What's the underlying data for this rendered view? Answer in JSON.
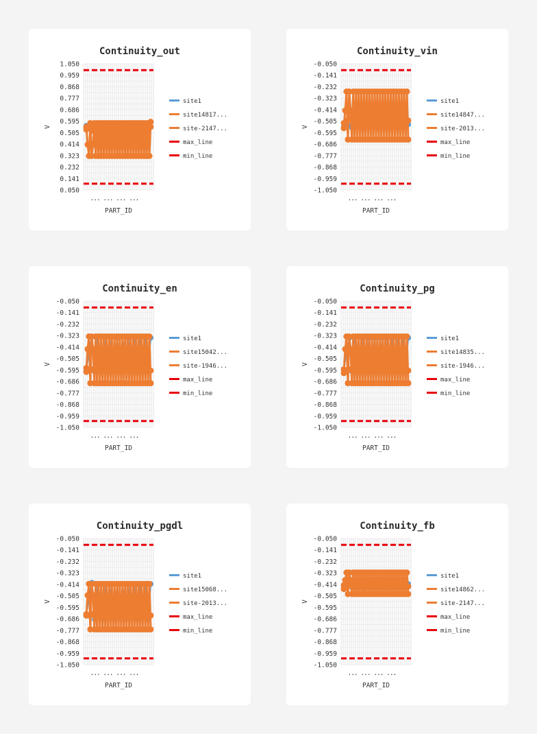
{
  "chart_data": [
    {
      "type": "line",
      "title": "Continuity_out",
      "xlabel": "PART_ID",
      "ylabel": "V",
      "yticks": [
        "1.050",
        "0.959",
        "0.868",
        "0.777",
        "0.686",
        "0.595",
        "0.505",
        "0.414",
        "0.323",
        "0.232",
        "0.141",
        "0.050"
      ],
      "ylim": [
        0.05,
        1.05
      ],
      "xtick_text": "... ... ... ...",
      "legend": [
        "site1",
        "site14817...",
        "site-2147...",
        "max_line",
        "min_line"
      ],
      "colors": {
        "site1": "#5b9bd5",
        "site2": "#ed7d31",
        "site3": "#ed7d31",
        "max_line": "#e8000b",
        "min_line": "#e8000b"
      },
      "series": [
        {
          "name": "site1",
          "values": [
            0.56,
            0.55,
            0.56,
            0.54,
            0.53,
            0.55,
            0.56,
            0.54,
            0.55,
            0.57,
            0.54,
            0.56,
            0.55,
            0.56,
            0.54,
            0.55,
            0.56,
            0.53,
            0.55,
            0.56,
            0.54,
            0.55,
            0.56,
            0.55
          ]
        },
        {
          "name": "site14817...",
          "values": [
            0.55,
            0.41,
            0.32,
            0.58,
            0.32,
            0.41,
            0.58,
            0.32,
            0.58,
            0.32,
            0.58,
            0.32,
            0.58,
            0.32,
            0.58,
            0.32,
            0.58,
            0.32,
            0.58,
            0.32,
            0.58,
            0.32,
            0.58,
            0.32,
            0.58,
            0.32,
            0.58,
            0.32,
            0.58,
            0.32,
            0.58,
            0.32,
            0.58,
            0.32,
            0.58,
            0.32,
            0.58,
            0.32,
            0.58,
            0.32,
            0.58,
            0.32,
            0.58,
            0.32,
            0.58,
            0.32,
            0.58,
            0.32,
            0.59
          ]
        },
        {
          "name": "site-2147...",
          "values": [
            0.53,
            0.55,
            0.52,
            0.55,
            0.53,
            0.55,
            0.52,
            0.55,
            0.53,
            0.55,
            0.52,
            0.55,
            0.53,
            0.55,
            0.52,
            0.55,
            0.53,
            0.55,
            0.52,
            0.55,
            0.53,
            0.55,
            0.52,
            0.55
          ]
        },
        {
          "name": "max_line",
          "constant": 1.0
        },
        {
          "name": "min_line",
          "constant": 0.1
        }
      ]
    },
    {
      "type": "line",
      "title": "Continuity_vin",
      "xlabel": "PART_ID",
      "ylabel": "V",
      "yticks": [
        "-0.050",
        "-0.141",
        "-0.232",
        "-0.323",
        "-0.414",
        "-0.505",
        "-0.595",
        "-0.686",
        "-0.777",
        "-0.868",
        "-0.959",
        "-1.050"
      ],
      "ylim": [
        -1.05,
        -0.05
      ],
      "xtick_text": "... ... ... ...",
      "legend": [
        "site1",
        "site14847...",
        "site-2013...",
        "max_line",
        "min_line"
      ],
      "colors": {
        "site1": "#5b9bd5",
        "site2": "#ed7d31",
        "site3": "#ed7d31",
        "max_line": "#e8000b",
        "min_line": "#e8000b"
      },
      "series": [
        {
          "name": "site1",
          "values": [
            -0.55,
            -0.52,
            -0.54,
            -0.56,
            -0.55,
            -0.53,
            -0.55,
            -0.56,
            -0.54,
            -0.55,
            -0.53,
            -0.55,
            -0.56,
            -0.54,
            -0.55,
            -0.56,
            -0.53,
            -0.55,
            -0.54,
            -0.55,
            -0.56,
            -0.54,
            -0.55,
            -0.53
          ]
        },
        {
          "name": "site14847...",
          "values": [
            -0.56,
            -0.42,
            -0.27,
            -0.65,
            -0.27,
            -0.42,
            -0.65,
            -0.27,
            -0.65,
            -0.27,
            -0.65,
            -0.27,
            -0.65,
            -0.27,
            -0.65,
            -0.27,
            -0.65,
            -0.27,
            -0.65,
            -0.27,
            -0.65,
            -0.27,
            -0.65,
            -0.27,
            -0.65,
            -0.27,
            -0.65,
            -0.27,
            -0.65,
            -0.27,
            -0.65,
            -0.27,
            -0.65,
            -0.27,
            -0.65,
            -0.27,
            -0.65,
            -0.27,
            -0.65,
            -0.27,
            -0.65,
            -0.27,
            -0.65,
            -0.27,
            -0.65,
            -0.27,
            -0.65,
            -0.27,
            -0.65
          ]
        },
        {
          "name": "site-2013...",
          "values": [
            -0.52,
            -0.5,
            -0.49,
            -0.5,
            -0.49,
            -0.5,
            -0.49,
            -0.5,
            -0.49,
            -0.5,
            -0.49,
            -0.5,
            -0.49,
            -0.5,
            -0.49,
            -0.5,
            -0.49,
            -0.5,
            -0.49,
            -0.5,
            -0.49,
            -0.5,
            -0.49,
            -0.5
          ]
        },
        {
          "name": "max_line",
          "constant": -0.1
        },
        {
          "name": "min_line",
          "constant": -1.0
        }
      ]
    },
    {
      "type": "line",
      "title": "Continuity_en",
      "xlabel": "PART_ID",
      "ylabel": "V",
      "yticks": [
        "-0.050",
        "-0.141",
        "-0.232",
        "-0.323",
        "-0.414",
        "-0.505",
        "-0.595",
        "-0.686",
        "-0.777",
        "-0.868",
        "-0.959",
        "-1.050"
      ],
      "ylim": [
        -1.05,
        -0.05
      ],
      "xtick_text": "... ... ... ...",
      "legend": [
        "site1",
        "site15042...",
        "site-1946...",
        "max_line",
        "min_line"
      ],
      "colors": {
        "site1": "#5b9bd5",
        "site2": "#ed7d31",
        "site3": "#ed7d31",
        "max_line": "#e8000b",
        "min_line": "#e8000b"
      },
      "series": [
        {
          "name": "site1",
          "values": [
            -0.6,
            -0.45,
            -0.33,
            -0.61,
            -0.34,
            -0.44,
            -0.6,
            -0.33,
            -0.59,
            -0.33,
            -0.6,
            -0.34,
            -0.6,
            -0.33,
            -0.59,
            -0.34,
            -0.6,
            -0.33,
            -0.6,
            -0.34,
            -0.59,
            -0.33,
            -0.6,
            -0.34
          ]
        },
        {
          "name": "site15042...",
          "values": [
            -0.61,
            -0.43,
            -0.33,
            -0.7,
            -0.33,
            -0.43,
            -0.7,
            -0.33,
            -0.7,
            -0.33,
            -0.7,
            -0.33,
            -0.7,
            -0.33,
            -0.7,
            -0.33,
            -0.7,
            -0.33,
            -0.7,
            -0.33,
            -0.7,
            -0.33,
            -0.7,
            -0.33,
            -0.7,
            -0.33,
            -0.7,
            -0.33,
            -0.7,
            -0.33,
            -0.7,
            -0.33,
            -0.7,
            -0.33,
            -0.7,
            -0.33,
            -0.7,
            -0.33,
            -0.7,
            -0.33,
            -0.7,
            -0.33,
            -0.7,
            -0.33,
            -0.7,
            -0.33,
            -0.7,
            -0.33,
            -0.7
          ]
        },
        {
          "name": "site-1946...",
          "values": [
            -0.58,
            -0.6,
            -0.59,
            -0.6,
            -0.59,
            -0.6,
            -0.59,
            -0.6,
            -0.59,
            -0.6,
            -0.59,
            -0.6,
            -0.59,
            -0.6,
            -0.59,
            -0.6,
            -0.59,
            -0.6,
            -0.59,
            -0.6,
            -0.59,
            -0.6,
            -0.59,
            -0.6
          ]
        },
        {
          "name": "max_line",
          "constant": -0.1
        },
        {
          "name": "min_line",
          "constant": -1.0
        }
      ]
    },
    {
      "type": "line",
      "title": "Continuity_pg",
      "xlabel": "PART_ID",
      "ylabel": "V",
      "yticks": [
        "-0.050",
        "-0.141",
        "-0.232",
        "-0.323",
        "-0.414",
        "-0.505",
        "-0.595",
        "-0.686",
        "-0.777",
        "-0.868",
        "-0.959",
        "-1.050"
      ],
      "ylim": [
        -1.05,
        -0.05
      ],
      "xtick_text": "... ... ... ...",
      "legend": [
        "site1",
        "site14835...",
        "site-1946...",
        "max_line",
        "min_line"
      ],
      "colors": {
        "site1": "#5b9bd5",
        "site2": "#ed7d31",
        "site3": "#ed7d31",
        "max_line": "#e8000b",
        "min_line": "#e8000b"
      },
      "series": [
        {
          "name": "site1",
          "values": [
            -0.6,
            -0.45,
            -0.34,
            -0.61,
            -0.34,
            -0.44,
            -0.61,
            -0.34,
            -0.6,
            -0.34,
            -0.61,
            -0.34,
            -0.6,
            -0.34,
            -0.61,
            -0.34,
            -0.6,
            -0.34,
            -0.61,
            -0.34,
            -0.6,
            -0.34,
            -0.61,
            -0.34
          ]
        },
        {
          "name": "site14835...",
          "values": [
            -0.62,
            -0.43,
            -0.33,
            -0.7,
            -0.33,
            -0.43,
            -0.7,
            -0.33,
            -0.7,
            -0.33,
            -0.7,
            -0.33,
            -0.7,
            -0.33,
            -0.7,
            -0.33,
            -0.7,
            -0.33,
            -0.7,
            -0.33,
            -0.7,
            -0.33,
            -0.7,
            -0.33,
            -0.7,
            -0.33,
            -0.7,
            -0.33,
            -0.7,
            -0.33,
            -0.7,
            -0.33,
            -0.7,
            -0.33,
            -0.7,
            -0.33,
            -0.7,
            -0.33,
            -0.7,
            -0.33,
            -0.7,
            -0.33,
            -0.7,
            -0.33,
            -0.7,
            -0.33,
            -0.7,
            -0.33,
            -0.7
          ]
        },
        {
          "name": "site-1946...",
          "values": [
            -0.59,
            -0.6,
            -0.59,
            -0.6,
            -0.59,
            -0.6,
            -0.59,
            -0.6,
            -0.59,
            -0.6,
            -0.59,
            -0.6,
            -0.59,
            -0.6,
            -0.59,
            -0.6,
            -0.59,
            -0.6,
            -0.59,
            -0.6,
            -0.59,
            -0.6,
            -0.59,
            -0.6
          ]
        },
        {
          "name": "max_line",
          "constant": -0.1
        },
        {
          "name": "min_line",
          "constant": -1.0
        }
      ]
    },
    {
      "type": "line",
      "title": "Continuity_pgdl",
      "xlabel": "PART_ID",
      "ylabel": "V",
      "yticks": [
        "-0.050",
        "-0.141",
        "-0.232",
        "-0.323",
        "-0.414",
        "-0.505",
        "-0.595",
        "-0.686",
        "-0.777",
        "-0.868",
        "-0.959",
        "-1.050"
      ],
      "ylim": [
        -1.05,
        -0.05
      ],
      "xtick_text": "... ... ... ...",
      "legend": [
        "site1",
        "site15068...",
        "site-2013...",
        "max_line",
        "min_line"
      ],
      "colors": {
        "site1": "#5b9bd5",
        "site2": "#ed7d31",
        "site3": "#ed7d31",
        "max_line": "#e8000b",
        "min_line": "#e8000b"
      },
      "series": [
        {
          "name": "site1",
          "values": [
            -0.65,
            -0.52,
            -0.4,
            -0.69,
            -0.41,
            -0.52,
            -0.69,
            -0.41,
            -0.68,
            -0.41,
            -0.69,
            -0.41,
            -0.68,
            -0.41,
            -0.69,
            -0.41,
            -0.68,
            -0.41,
            -0.69,
            -0.41,
            -0.68,
            -0.41,
            -0.69,
            -0.41
          ]
        },
        {
          "name": "site15068...",
          "values": [
            -0.66,
            -0.5,
            -0.41,
            -0.77,
            -0.41,
            -0.5,
            -0.77,
            -0.41,
            -0.77,
            -0.41,
            -0.77,
            -0.41,
            -0.77,
            -0.41,
            -0.77,
            -0.41,
            -0.77,
            -0.41,
            -0.77,
            -0.41,
            -0.77,
            -0.41,
            -0.77,
            -0.41,
            -0.77,
            -0.41,
            -0.77,
            -0.41,
            -0.77,
            -0.41,
            -0.77,
            -0.41,
            -0.77,
            -0.41,
            -0.77,
            -0.41,
            -0.77,
            -0.41,
            -0.77,
            -0.41,
            -0.77,
            -0.41,
            -0.77,
            -0.41,
            -0.77,
            -0.41,
            -0.77,
            -0.41,
            -0.77
          ]
        },
        {
          "name": "site-2013...",
          "values": [
            -0.65,
            -0.66,
            -0.65,
            -0.66,
            -0.65,
            -0.66,
            -0.65,
            -0.66,
            -0.65,
            -0.66,
            -0.65,
            -0.66,
            -0.65,
            -0.66,
            -0.65,
            -0.66,
            -0.65,
            -0.66,
            -0.65,
            -0.66,
            -0.65,
            -0.66,
            -0.65,
            -0.66
          ]
        },
        {
          "name": "max_line",
          "constant": -0.1
        },
        {
          "name": "min_line",
          "constant": -1.0
        }
      ]
    },
    {
      "type": "line",
      "title": "Continuity_fb",
      "xlabel": "PART_ID",
      "ylabel": "V",
      "yticks": [
        "-0.050",
        "-0.141",
        "-0.232",
        "-0.323",
        "-0.414",
        "-0.505",
        "-0.595",
        "-0.686",
        "-0.777",
        "-0.868",
        "-0.959",
        "-1.050"
      ],
      "ylim": [
        -1.05,
        -0.05
      ],
      "xtick_text": "... ... ... ...",
      "legend": [
        "site1",
        "site14862...",
        "site-2147...",
        "max_line",
        "min_line"
      ],
      "colors": {
        "site1": "#5b9bd5",
        "site2": "#ed7d31",
        "site3": "#ed7d31",
        "max_line": "#e8000b",
        "min_line": "#e8000b"
      },
      "series": [
        {
          "name": "site1",
          "values": [
            -0.44,
            -0.4,
            -0.42,
            -0.44,
            -0.43,
            -0.41,
            -0.43,
            -0.44,
            -0.42,
            -0.43,
            -0.41,
            -0.43,
            -0.44,
            -0.42,
            -0.43,
            -0.44,
            -0.41,
            -0.43,
            -0.42,
            -0.43,
            -0.44,
            -0.42,
            -0.43,
            -0.41
          ]
        },
        {
          "name": "site14862...",
          "values": [
            -0.45,
            -0.38,
            -0.32,
            -0.49,
            -0.32,
            -0.38,
            -0.49,
            -0.32,
            -0.49,
            -0.32,
            -0.49,
            -0.32,
            -0.49,
            -0.32,
            -0.49,
            -0.32,
            -0.49,
            -0.32,
            -0.49,
            -0.32,
            -0.49,
            -0.32,
            -0.49,
            -0.32,
            -0.49,
            -0.32,
            -0.49,
            -0.32,
            -0.49,
            -0.32,
            -0.49,
            -0.32,
            -0.49,
            -0.32,
            -0.49,
            -0.32,
            -0.49,
            -0.32,
            -0.49,
            -0.32,
            -0.49,
            -0.32,
            -0.49,
            -0.32,
            -0.49,
            -0.32,
            -0.49,
            -0.32,
            -0.49
          ]
        },
        {
          "name": "site-2147...",
          "values": [
            -0.42,
            -0.43,
            -0.42,
            -0.43,
            -0.42,
            -0.43,
            -0.42,
            -0.43,
            -0.42,
            -0.43,
            -0.42,
            -0.43,
            -0.42,
            -0.43,
            -0.42,
            -0.43,
            -0.42,
            -0.43,
            -0.42,
            -0.43,
            -0.42,
            -0.43,
            -0.42,
            -0.43
          ]
        },
        {
          "name": "max_line",
          "constant": -0.1
        },
        {
          "name": "min_line",
          "constant": -1.0
        }
      ]
    }
  ]
}
